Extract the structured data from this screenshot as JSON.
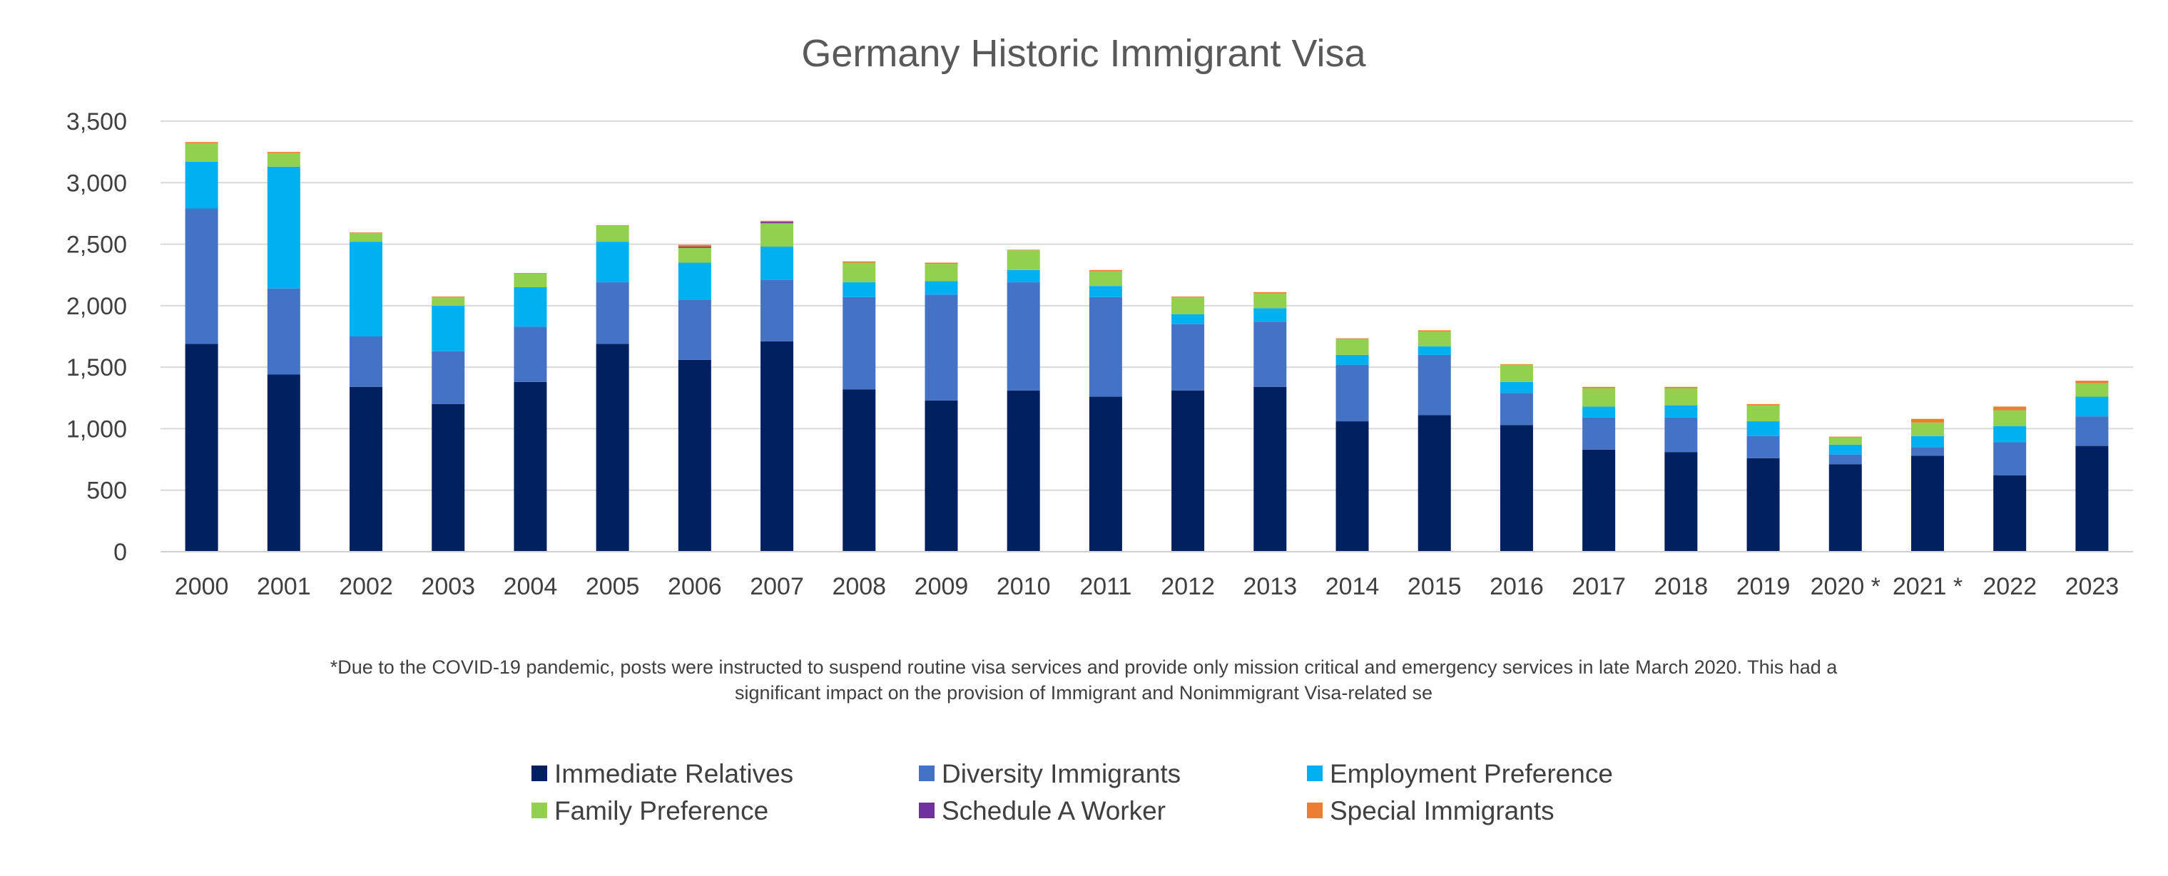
{
  "chart_data": {
    "type": "bar",
    "stacked": true,
    "title": "Germany Historic Immigrant Visa",
    "xlabel": "",
    "ylabel": "",
    "ylim": [
      0,
      3500
    ],
    "yticks": [
      "0",
      "500",
      "1,000",
      "1,500",
      "2,000",
      "2,500",
      "3,000",
      "3,500"
    ],
    "grid": true,
    "legend_position": "bottom",
    "categories": [
      "2000",
      "2001",
      "2002",
      "2003",
      "2004",
      "2005",
      "2006",
      "2007",
      "2008",
      "2009",
      "2010",
      "2011",
      "2012",
      "2013",
      "2014",
      "2015",
      "2016",
      "2017",
      "2018",
      "2019",
      "2020 *",
      "2021 *",
      "2022",
      "2023"
    ],
    "series": [
      {
        "name": "Immediate Relatives",
        "color": "#002060",
        "values": [
          1690,
          1440,
          1340,
          1200,
          1380,
          1690,
          1560,
          1710,
          1320,
          1230,
          1310,
          1260,
          1310,
          1340,
          1060,
          1110,
          1030,
          830,
          810,
          760,
          710,
          780,
          620,
          860
        ]
      },
      {
        "name": "Diversity Immigrants",
        "color": "#4472C4",
        "values": [
          1100,
          700,
          410,
          430,
          450,
          500,
          490,
          500,
          750,
          860,
          880,
          810,
          540,
          530,
          460,
          490,
          260,
          260,
          280,
          180,
          80,
          70,
          270,
          240
        ]
      },
      {
        "name": "Employment Preference",
        "color": "#00B0F0",
        "values": [
          380,
          990,
          770,
          370,
          320,
          330,
          300,
          270,
          120,
          110,
          100,
          90,
          80,
          110,
          80,
          70,
          90,
          90,
          100,
          120,
          80,
          90,
          130,
          160
        ]
      },
      {
        "name": "Family Preference",
        "color": "#92D050",
        "values": [
          150,
          110,
          70,
          70,
          110,
          130,
          120,
          190,
          160,
          140,
          160,
          120,
          140,
          120,
          130,
          120,
          140,
          150,
          140,
          130,
          60,
          110,
          130,
          110
        ]
      },
      {
        "name": "Schedule A Worker",
        "color": "#7030A0",
        "values": [
          0,
          0,
          0,
          0,
          0,
          0,
          10,
          10,
          0,
          0,
          0,
          0,
          0,
          0,
          0,
          0,
          0,
          0,
          0,
          0,
          0,
          0,
          0,
          0
        ]
      },
      {
        "name": "Special Immigrants",
        "color": "#ED7D31",
        "values": [
          10,
          10,
          5,
          5,
          5,
          5,
          15,
          10,
          10,
          10,
          5,
          10,
          5,
          10,
          5,
          10,
          5,
          10,
          10,
          10,
          5,
          30,
          30,
          20
        ]
      }
    ],
    "annotation": "*Due to the COVID-19 pandemic, posts were instructed to suspend routine visa services and provide only mission critical and emergency services in late March 2020. This had a significant impact on the provision of Immigrant and Nonimmigrant Visa-related se",
    "annotation_lines": [
      "*Due to the COVID-19 pandemic, posts were instructed to suspend routine visa services and provide only mission critical and emergency services in late March 2020. This had a",
      "significant impact on the provision of Immigrant and Nonimmigrant Visa-related se"
    ]
  }
}
